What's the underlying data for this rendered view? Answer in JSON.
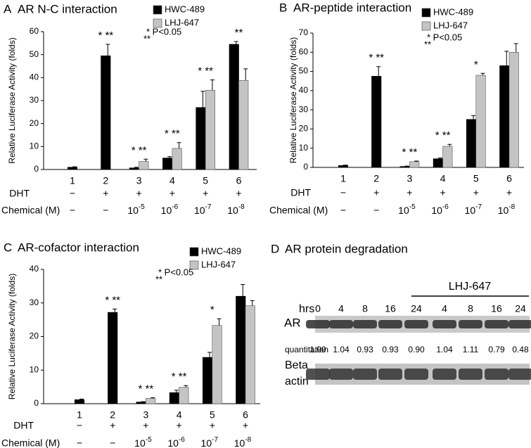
{
  "chart_data": [
    {
      "type": "bar",
      "panel": "A",
      "title": "AR N-C interaction",
      "ylabel": "Relative Luciferase Activity (folds)",
      "categories": [
        "1",
        "2",
        "3",
        "4",
        "5",
        "6"
      ],
      "series": [
        {
          "name": "HWC-489",
          "color": "#000000",
          "values": [
            1,
            49.5,
            0.7,
            5,
            27,
            54.5
          ],
          "errors": [
            0.2,
            5,
            0.3,
            0.6,
            7,
            1.2
          ]
        },
        {
          "name": "LHJ-647",
          "color": "#c4c4c4",
          "values": [
            null,
            null,
            3.5,
            9.2,
            34.5,
            38.8
          ],
          "errors": [
            null,
            null,
            1,
            2.5,
            4.5,
            5
          ]
        }
      ],
      "ylim": [
        0,
        60
      ],
      "yticks": [
        0,
        10,
        20,
        30,
        40,
        50,
        60
      ],
      "significance": [
        null,
        "* **",
        "* **",
        "* **",
        "* **",
        "**"
      ],
      "p_note": [
        "* P<0.05",
        "**"
      ],
      "rows": [
        {
          "label": "DHT",
          "values": [
            "−",
            "+",
            "+",
            "+",
            "+",
            "+"
          ]
        },
        {
          "label": "Chemical (M)",
          "values": [
            "−",
            "−",
            [
              "10",
              "-5"
            ],
            [
              "10",
              "-6"
            ],
            [
              "10",
              "-7"
            ],
            [
              "10",
              "-8"
            ]
          ]
        }
      ]
    },
    {
      "type": "bar",
      "panel": "B",
      "title": "AR-peptide interaction",
      "ylabel": "Relative Luciferase Activity (folds)",
      "categories": [
        "1",
        "2",
        "3",
        "4",
        "5",
        "6"
      ],
      "series": [
        {
          "name": "HWC-489",
          "color": "#000000",
          "values": [
            1,
            47.5,
            0.5,
            4.5,
            25,
            53
          ],
          "errors": [
            0.2,
            5,
            0.2,
            0.4,
            2,
            7.5
          ]
        },
        {
          "name": "LHJ-647",
          "color": "#c4c4c4",
          "values": [
            null,
            null,
            3,
            11,
            48,
            60
          ],
          "errors": [
            null,
            null,
            0.3,
            1,
            1,
            4.5
          ]
        }
      ],
      "ylim": [
        0,
        70
      ],
      "yticks": [
        0,
        10,
        20,
        30,
        40,
        50,
        60,
        70
      ],
      "significance": [
        null,
        "* **",
        "* **",
        "* **",
        "*",
        null
      ],
      "p_note": [
        "* P<0.05",
        "**"
      ],
      "rows": [
        {
          "label": "DHT",
          "values": [
            "−",
            "+",
            "+",
            "+",
            "+",
            "+"
          ]
        },
        {
          "label": "Chemical (M)",
          "values": [
            "−",
            "−",
            [
              "10",
              "-5"
            ],
            [
              "10",
              "-6"
            ],
            [
              "10",
              "-7"
            ],
            [
              "10",
              "-8"
            ]
          ]
        }
      ]
    },
    {
      "type": "bar",
      "panel": "C",
      "title": "AR-cofactor interaction",
      "ylabel": "Relative Luciferase Activity (folds)",
      "categories": [
        "1",
        "2",
        "3",
        "4",
        "5",
        "6"
      ],
      "series": [
        {
          "name": "HWC-489",
          "color": "#000000",
          "values": [
            1.2,
            27.2,
            0.5,
            3.3,
            13.8,
            32
          ],
          "errors": [
            0.2,
            1,
            0.1,
            0.7,
            1.5,
            3.5
          ]
        },
        {
          "name": "LHJ-647",
          "color": "#c4c4c4",
          "values": [
            null,
            null,
            1.6,
            4.9,
            23.3,
            29.2
          ],
          "errors": [
            null,
            null,
            0.2,
            0.5,
            2,
            1.5
          ]
        }
      ],
      "ylim": [
        0,
        40
      ],
      "yticks": [
        0,
        10,
        20,
        30,
        40
      ],
      "significance": [
        null,
        "* **",
        "* **",
        "* **",
        "*",
        null
      ],
      "p_note": [
        "* P<0.05",
        "**"
      ],
      "rows": [
        {
          "label": "DHT",
          "values": [
            "−",
            "+",
            "+",
            "+",
            "+",
            "+"
          ]
        },
        {
          "label": "Chemical (M)",
          "values": [
            "−",
            "−",
            [
              "10",
              "-5"
            ],
            [
              "10",
              "-6"
            ],
            [
              "10",
              "-7"
            ],
            [
              "10",
              "-8"
            ]
          ]
        }
      ]
    }
  ],
  "blot": {
    "panel": "D",
    "title": "AR protein degradation",
    "group_label": "LHJ-647",
    "time_label": "hrs",
    "times": [
      "0",
      "4",
      "8",
      "16",
      "24",
      "4",
      "8",
      "16",
      "24"
    ],
    "ar_label": "AR",
    "quant_label": "quantitation",
    "quantitation": [
      "1.00",
      "1.04",
      "0.93",
      "0.93",
      "0.90",
      "1.04",
      "1.11",
      "0.79",
      "0.48"
    ],
    "control_label": [
      "Beta",
      "actin"
    ]
  }
}
